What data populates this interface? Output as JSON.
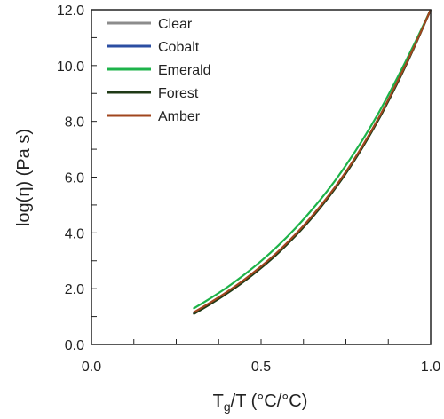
{
  "chart_data": {
    "type": "line",
    "title": "",
    "xlabel": {
      "main": "T",
      "sub": "g",
      "rest": "/T (°C/°C)"
    },
    "ylabel": "log(η) (Pa s)",
    "xlim": [
      0.0,
      1.0
    ],
    "ylim": [
      0.0,
      12.0
    ],
    "x_ticks": [
      "0.0",
      "0.5",
      "1.0"
    ],
    "x_minor_step": 0.125,
    "y_ticks": [
      "0.0",
      "2.0",
      "4.0",
      "6.0",
      "8.0",
      "10.0",
      "12.0"
    ],
    "y_minor_step": 1.0,
    "grid": false,
    "legend_position": "top-left",
    "x": [
      0.3,
      0.35,
      0.4,
      0.45,
      0.5,
      0.55,
      0.6,
      0.65,
      0.7,
      0.75,
      0.8,
      0.85,
      0.9,
      0.95,
      1.0
    ],
    "series": [
      {
        "name": "Clear",
        "color": "#8c8c8c",
        "values": [
          1.1,
          1.46,
          1.85,
          2.28,
          2.76,
          3.29,
          3.89,
          4.56,
          5.31,
          6.15,
          7.1,
          8.16,
          9.34,
          10.62,
          12.0
        ]
      },
      {
        "name": "Cobalt",
        "color": "#2b4ea2",
        "values": [
          1.12,
          1.48,
          1.87,
          2.3,
          2.78,
          3.31,
          3.91,
          4.58,
          5.33,
          6.17,
          7.12,
          8.18,
          9.36,
          10.63,
          12.0
        ]
      },
      {
        "name": "Emerald",
        "color": "#1db34a",
        "values": [
          1.28,
          1.65,
          2.05,
          2.5,
          2.99,
          3.54,
          4.15,
          4.83,
          5.58,
          6.42,
          7.35,
          8.38,
          9.52,
          10.73,
          12.0
        ]
      },
      {
        "name": "Forest",
        "color": "#1f3a16",
        "values": [
          1.08,
          1.44,
          1.83,
          2.26,
          2.74,
          3.27,
          3.87,
          4.54,
          5.29,
          6.13,
          7.08,
          8.14,
          9.32,
          10.61,
          12.0
        ]
      },
      {
        "name": "Amber",
        "color": "#a0461e",
        "values": [
          1.14,
          1.5,
          1.89,
          2.32,
          2.8,
          3.33,
          3.93,
          4.6,
          5.35,
          6.19,
          7.14,
          8.2,
          9.38,
          10.64,
          12.0
        ]
      }
    ]
  }
}
